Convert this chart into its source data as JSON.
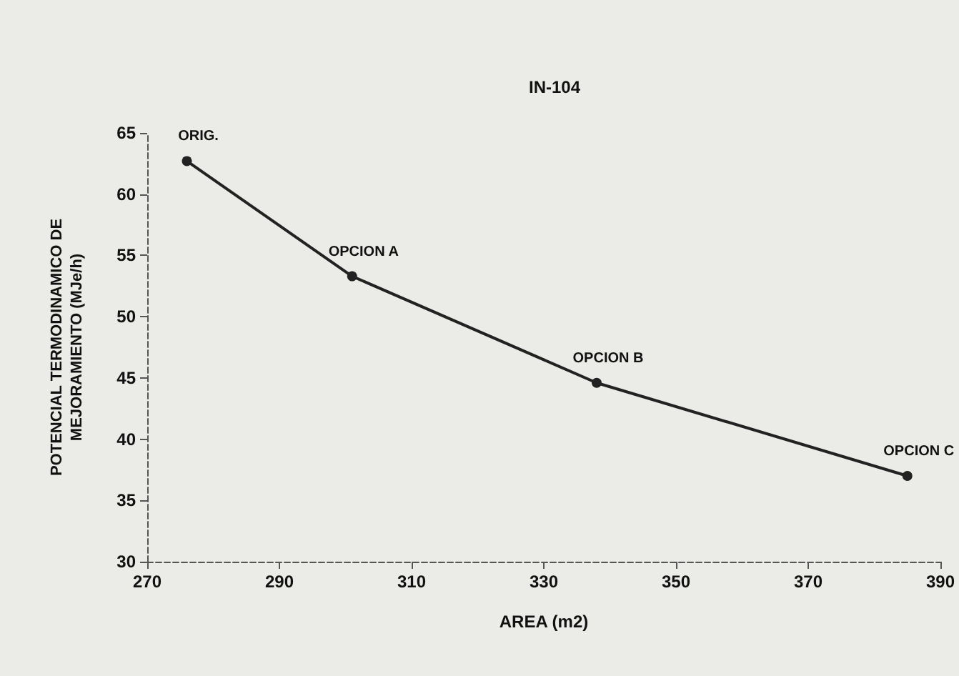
{
  "chart_data": {
    "type": "line",
    "title": "IN-104",
    "xlabel": "AREA (m2)",
    "ylabel": "POTENCIAL TERMODINAMICO DE\nMEJORAMIENTO (MJe/h)",
    "x": [
      276,
      301,
      338,
      385
    ],
    "series": [
      {
        "color": "#222222",
        "values": [
          62.7,
          53.3,
          44.6,
          37.0
        ]
      }
    ],
    "annotations": [
      {
        "text": "ORIG.",
        "x": 276,
        "y": 62.7
      },
      {
        "text": "OPCION A",
        "x": 301,
        "y": 53.3
      },
      {
        "text": "OPCION B",
        "x": 338,
        "y": 44.6
      },
      {
        "text": "OPCION C",
        "x": 385,
        "y": 37.0
      }
    ],
    "xlim": [
      270,
      390
    ],
    "xticks": [
      270,
      290,
      310,
      330,
      350,
      370,
      390
    ],
    "ylim": [
      30,
      65
    ],
    "yticks": [
      30,
      35,
      40,
      45,
      50,
      55,
      60,
      65
    ],
    "grid": false,
    "marker": "circle",
    "line_style": "solid"
  }
}
